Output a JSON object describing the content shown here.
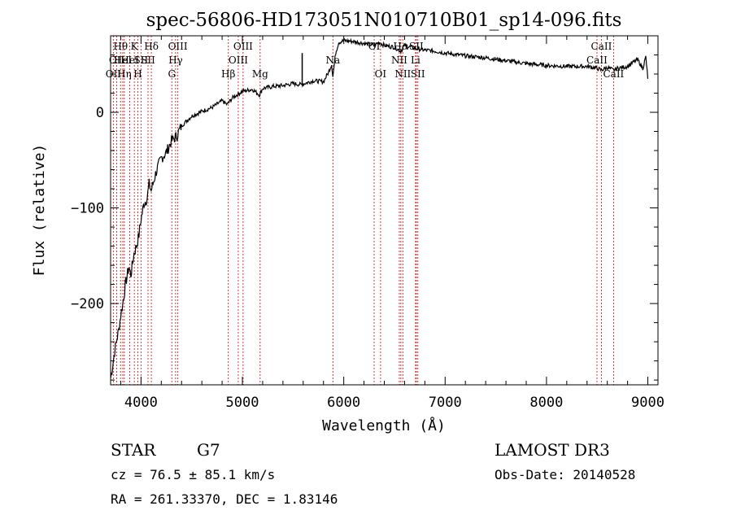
{
  "title": "spec-56806-HD173051N010710B01_sp14-096.fits",
  "chart_data": {
    "type": "line",
    "xlabel": "Wavelength (Å)",
    "ylabel": "Flux (relative)",
    "xlim": [
      3700,
      9100
    ],
    "ylim": [
      -285,
      80
    ],
    "xticks": [
      4000,
      5000,
      6000,
      7000,
      8000,
      9000
    ],
    "yticks": [
      -200,
      -100,
      0
    ],
    "ytick_labels": [
      "−200",
      "−100",
      "0"
    ],
    "grid": false,
    "series": [
      {
        "x": [
          3700,
          3720,
          3740,
          3760,
          3780,
          3800,
          3820,
          3850,
          3880,
          3900,
          3930,
          3960,
          3980,
          4000,
          4030,
          4060,
          4080,
          4100,
          4150,
          4200,
          4250,
          4300,
          4350,
          4400,
          4450,
          4500,
          4600,
          4700,
          4800,
          4850,
          4900,
          5000,
          5100,
          5170,
          5200,
          5300,
          5400,
          5500,
          5580,
          5700,
          5800,
          5850,
          5880,
          5893,
          5920,
          5950,
          6000,
          6100,
          6200,
          6300,
          6350,
          6400,
          6500,
          6563,
          6600,
          6700,
          6800,
          6900,
          7000,
          7200,
          7400,
          7600,
          7800,
          8000,
          8200,
          8400,
          8500,
          8542,
          8600,
          8662,
          8700,
          8800,
          8850,
          8900,
          8950,
          8980,
          9000
        ],
        "y": [
          -278,
          -265,
          -250,
          -238,
          -228,
          -212,
          -200,
          -178,
          -162,
          -170,
          -148,
          -138,
          -128,
          -112,
          -95,
          -90,
          -75,
          -82,
          -62,
          -48,
          -42,
          -30,
          -25,
          -14,
          -9,
          -4,
          1,
          5,
          12,
          8,
          15,
          22,
          24,
          18,
          25,
          27,
          28,
          30,
          29,
          33,
          32,
          42,
          50,
          38,
          62,
          73,
          75,
          74,
          72,
          70,
          73,
          70,
          68,
          64,
          70,
          67,
          65,
          64,
          62,
          59,
          57,
          54,
          51,
          49,
          48,
          48,
          46,
          44,
          47,
          44,
          46,
          48,
          52,
          55,
          46,
          58,
          35
        ]
      }
    ],
    "spike": {
      "x": 5590,
      "y_min": 29,
      "y_max": 62
    },
    "line_markers": [
      {
        "x": 3727,
        "label": "OII",
        "row": 2
      },
      {
        "x": 3760,
        "label": "OII",
        "row": 1
      },
      {
        "x": 3798,
        "label": "Hθ",
        "row": 0
      },
      {
        "x": 3820,
        "label": "HeI",
        "row": 1
      },
      {
        "x": 3835,
        "label": "Hη",
        "row": 2
      },
      {
        "x": 3889,
        "label": "HeI",
        "row": 1
      },
      {
        "x": 3934,
        "label": "K",
        "row": 0
      },
      {
        "x": 3969,
        "label": "H",
        "row": 2
      },
      {
        "x": 4000,
        "label": "SII",
        "row": 1
      },
      {
        "x": 4102,
        "label": "Hδ",
        "row": 0
      },
      {
        "x": 4069,
        "label": "SII",
        "row": 1
      },
      {
        "x": 4304,
        "label": "G",
        "row": 2
      },
      {
        "x": 4341,
        "label": "Hγ",
        "row": 1
      },
      {
        "x": 4363,
        "label": "OIII",
        "row": 0
      },
      {
        "x": 4861,
        "label": "Hβ",
        "row": 2
      },
      {
        "x": 4959,
        "label": "OIII",
        "row": 1
      },
      {
        "x": 5007,
        "label": "OIII",
        "row": 0
      },
      {
        "x": 5175,
        "label": "Mg",
        "row": 2
      },
      {
        "x": 5893,
        "label": "Na",
        "row": 1
      },
      {
        "x": 6300,
        "label": "OI",
        "row": 0
      },
      {
        "x": 6363,
        "label": "OI",
        "row": 2
      },
      {
        "x": 6548,
        "label": "NII",
        "row": 1
      },
      {
        "x": 6563,
        "label": "Hα",
        "row": 0
      },
      {
        "x": 6583,
        "label": "NII",
        "row": 2
      },
      {
        "x": 6708,
        "label": "Li",
        "row": 1
      },
      {
        "x": 6716,
        "label": "SII",
        "row": 0
      },
      {
        "x": 6731,
        "label": "SII",
        "row": 2
      },
      {
        "x": 8498,
        "label": "CaII",
        "row": 1
      },
      {
        "x": 8542,
        "label": "CaII",
        "row": 0
      },
      {
        "x": 8662,
        "label": "CaII",
        "row": 2
      }
    ]
  },
  "info": {
    "class_label": "STAR",
    "subclass": "G7",
    "survey": "LAMOST DR3",
    "cz": "cz = 76.5 ± 85.1 km/s",
    "obs_date": "Obs-Date: 20140528",
    "coords": "RA = 261.33370, DEC =    1.83146"
  }
}
